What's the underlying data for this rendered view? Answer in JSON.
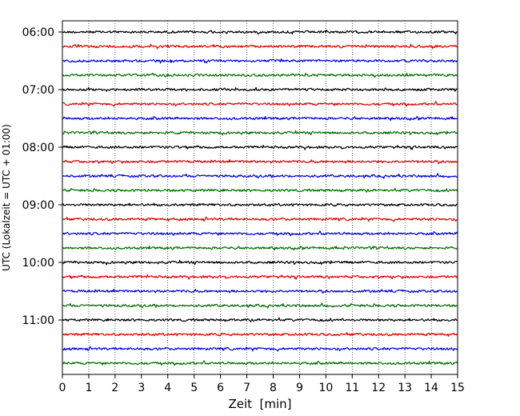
{
  "chart_data": {
    "type": "line",
    "xlabel": "Zeit  [min]",
    "ylabel": "UTC (Lokalzeit = UTC + 01:00)",
    "xlim": [
      0,
      15
    ],
    "x_ticks": [
      "0",
      "1",
      "2",
      "3",
      "4",
      "5",
      "6",
      "7",
      "8",
      "9",
      "10",
      "11",
      "12",
      "13",
      "14",
      "15"
    ],
    "y_tick_labels": [
      "06:00",
      "07:00",
      "08:00",
      "09:00",
      "10:00",
      "11:00"
    ],
    "grid": "vertical dotted lines at each minute",
    "trace_interval_minutes": 15,
    "traces_count": 24,
    "trace_start_times": [
      "06:00",
      "06:15",
      "06:30",
      "06:45",
      "07:00",
      "07:15",
      "07:30",
      "07:45",
      "08:00",
      "08:15",
      "08:30",
      "08:45",
      "09:00",
      "09:15",
      "09:30",
      "09:45",
      "10:00",
      "10:15",
      "10:30",
      "10:45",
      "11:00",
      "11:15",
      "11:30",
      "11:45"
    ],
    "trace_colors": [
      "#000000",
      "#e00000",
      "#0000e0",
      "#007000"
    ]
  }
}
